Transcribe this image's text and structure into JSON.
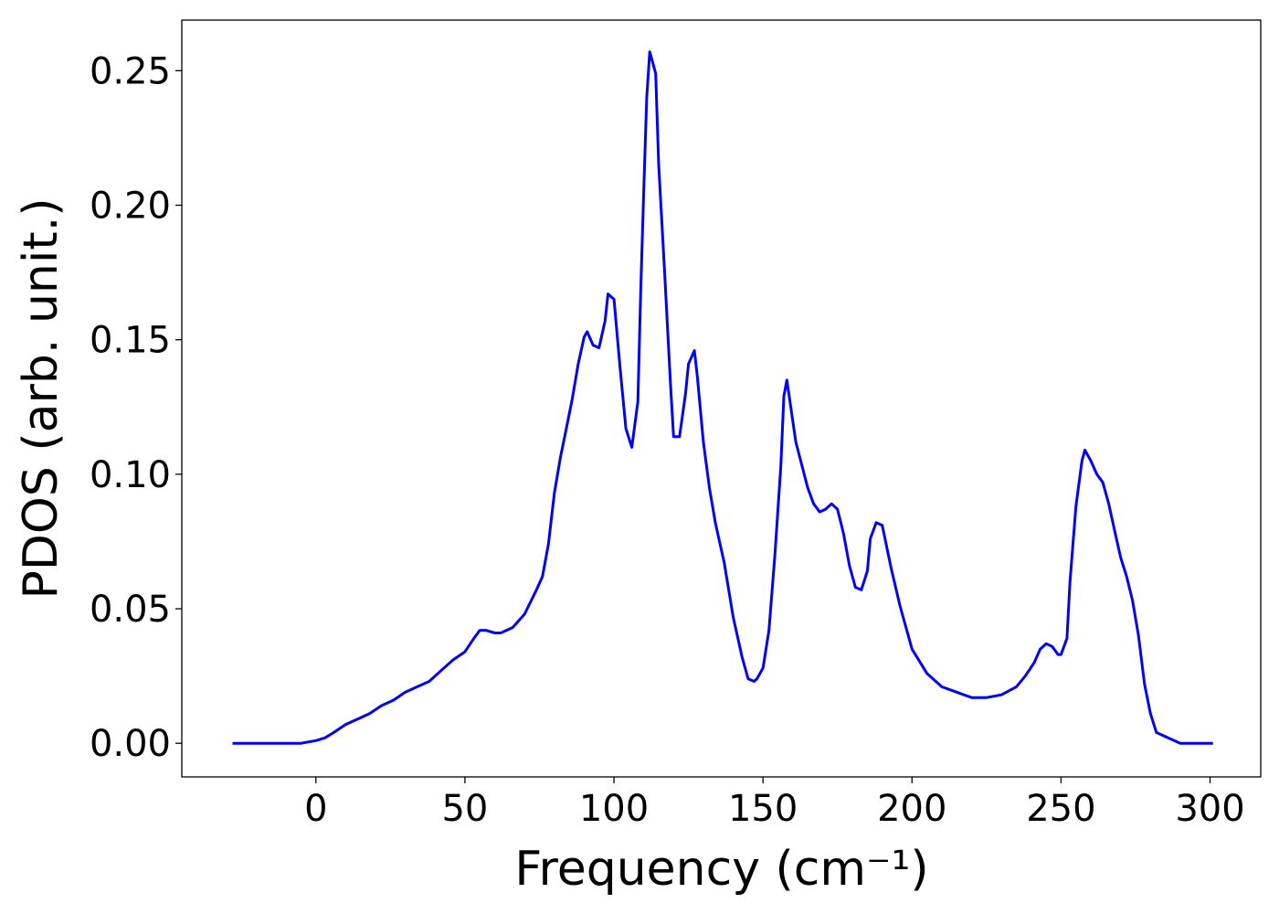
{
  "chart_data": {
    "type": "line",
    "xlabel": "Frequency (cm⁻¹)",
    "ylabel": "PDOS (arb. unit.)",
    "xlim": [
      -45,
      317
    ],
    "ylim": [
      -0.0125,
      0.2688
    ],
    "xticks": [
      0,
      50,
      100,
      150,
      200,
      250,
      300
    ],
    "xtick_labels": [
      "0",
      "50",
      "100",
      "150",
      "200",
      "250",
      "300"
    ],
    "yticks": [
      0.0,
      0.05,
      0.1,
      0.15,
      0.2,
      0.25
    ],
    "ytick_labels": [
      "0.00",
      "0.05",
      "0.10",
      "0.15",
      "0.20",
      "0.25"
    ],
    "grid": false,
    "series": [
      {
        "color": "#0000ff",
        "x": [
          -28,
          -20,
          -10,
          -5,
          0,
          3,
          6,
          10,
          14,
          18,
          22,
          26,
          30,
          34,
          38,
          42,
          46,
          50,
          53,
          55,
          57,
          60,
          62,
          66,
          70,
          74,
          76,
          78,
          80,
          82,
          84,
          86,
          88,
          90,
          91,
          93,
          95,
          97,
          98,
          100,
          102,
          104,
          106,
          108,
          109,
          110,
          111,
          112,
          114,
          115,
          117,
          119,
          120,
          122,
          124,
          125,
          127,
          128,
          130,
          132,
          134,
          137,
          140,
          143,
          145,
          147,
          148,
          150,
          152,
          154,
          156,
          157,
          158,
          161,
          165,
          167,
          169,
          171,
          173,
          175,
          177,
          179,
          181,
          183,
          185,
          186,
          188,
          190,
          193,
          196,
          200,
          205,
          210,
          215,
          220,
          225,
          230,
          235,
          238,
          241,
          243,
          245,
          247,
          249,
          250,
          252,
          253,
          255,
          257,
          258,
          260,
          262,
          264,
          266,
          268,
          270,
          272,
          274,
          276,
          278,
          280,
          282,
          290,
          300,
          301
        ],
        "y": [
          0.0,
          0.0,
          0.0,
          0.0,
          0.001,
          0.002,
          0.004,
          0.007,
          0.009,
          0.011,
          0.014,
          0.016,
          0.019,
          0.021,
          0.023,
          0.027,
          0.031,
          0.034,
          0.039,
          0.042,
          0.042,
          0.041,
          0.041,
          0.043,
          0.048,
          0.057,
          0.062,
          0.074,
          0.093,
          0.106,
          0.117,
          0.128,
          0.141,
          0.151,
          0.153,
          0.148,
          0.147,
          0.157,
          0.167,
          0.165,
          0.14,
          0.117,
          0.11,
          0.127,
          0.169,
          0.206,
          0.24,
          0.257,
          0.249,
          0.215,
          0.175,
          0.133,
          0.114,
          0.114,
          0.13,
          0.141,
          0.146,
          0.136,
          0.112,
          0.095,
          0.082,
          0.067,
          0.047,
          0.032,
          0.024,
          0.023,
          0.024,
          0.028,
          0.042,
          0.07,
          0.103,
          0.129,
          0.135,
          0.112,
          0.095,
          0.089,
          0.086,
          0.087,
          0.089,
          0.087,
          0.078,
          0.066,
          0.058,
          0.057,
          0.064,
          0.076,
          0.082,
          0.081,
          0.065,
          0.051,
          0.035,
          0.026,
          0.021,
          0.019,
          0.017,
          0.017,
          0.018,
          0.021,
          0.025,
          0.03,
          0.035,
          0.037,
          0.036,
          0.033,
          0.033,
          0.039,
          0.06,
          0.088,
          0.105,
          0.109,
          0.105,
          0.1,
          0.097,
          0.089,
          0.079,
          0.069,
          0.062,
          0.053,
          0.04,
          0.022,
          0.011,
          0.004,
          0.0,
          0.0,
          0.0
        ]
      }
    ]
  }
}
